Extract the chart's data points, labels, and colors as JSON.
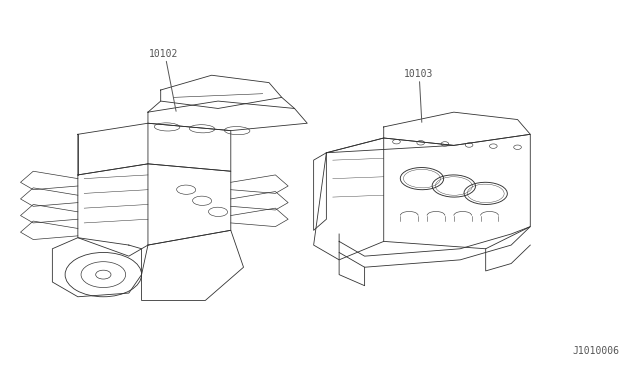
{
  "background_color": "#ffffff",
  "fig_width": 6.4,
  "fig_height": 3.72,
  "dpi": 100,
  "label_10102": "10102",
  "label_10103": "10103",
  "label_drawing_no": "J1010006",
  "text_color": "#555555",
  "line_color": "#333333",
  "font_size_labels": 7,
  "font_size_drawing_no": 7
}
